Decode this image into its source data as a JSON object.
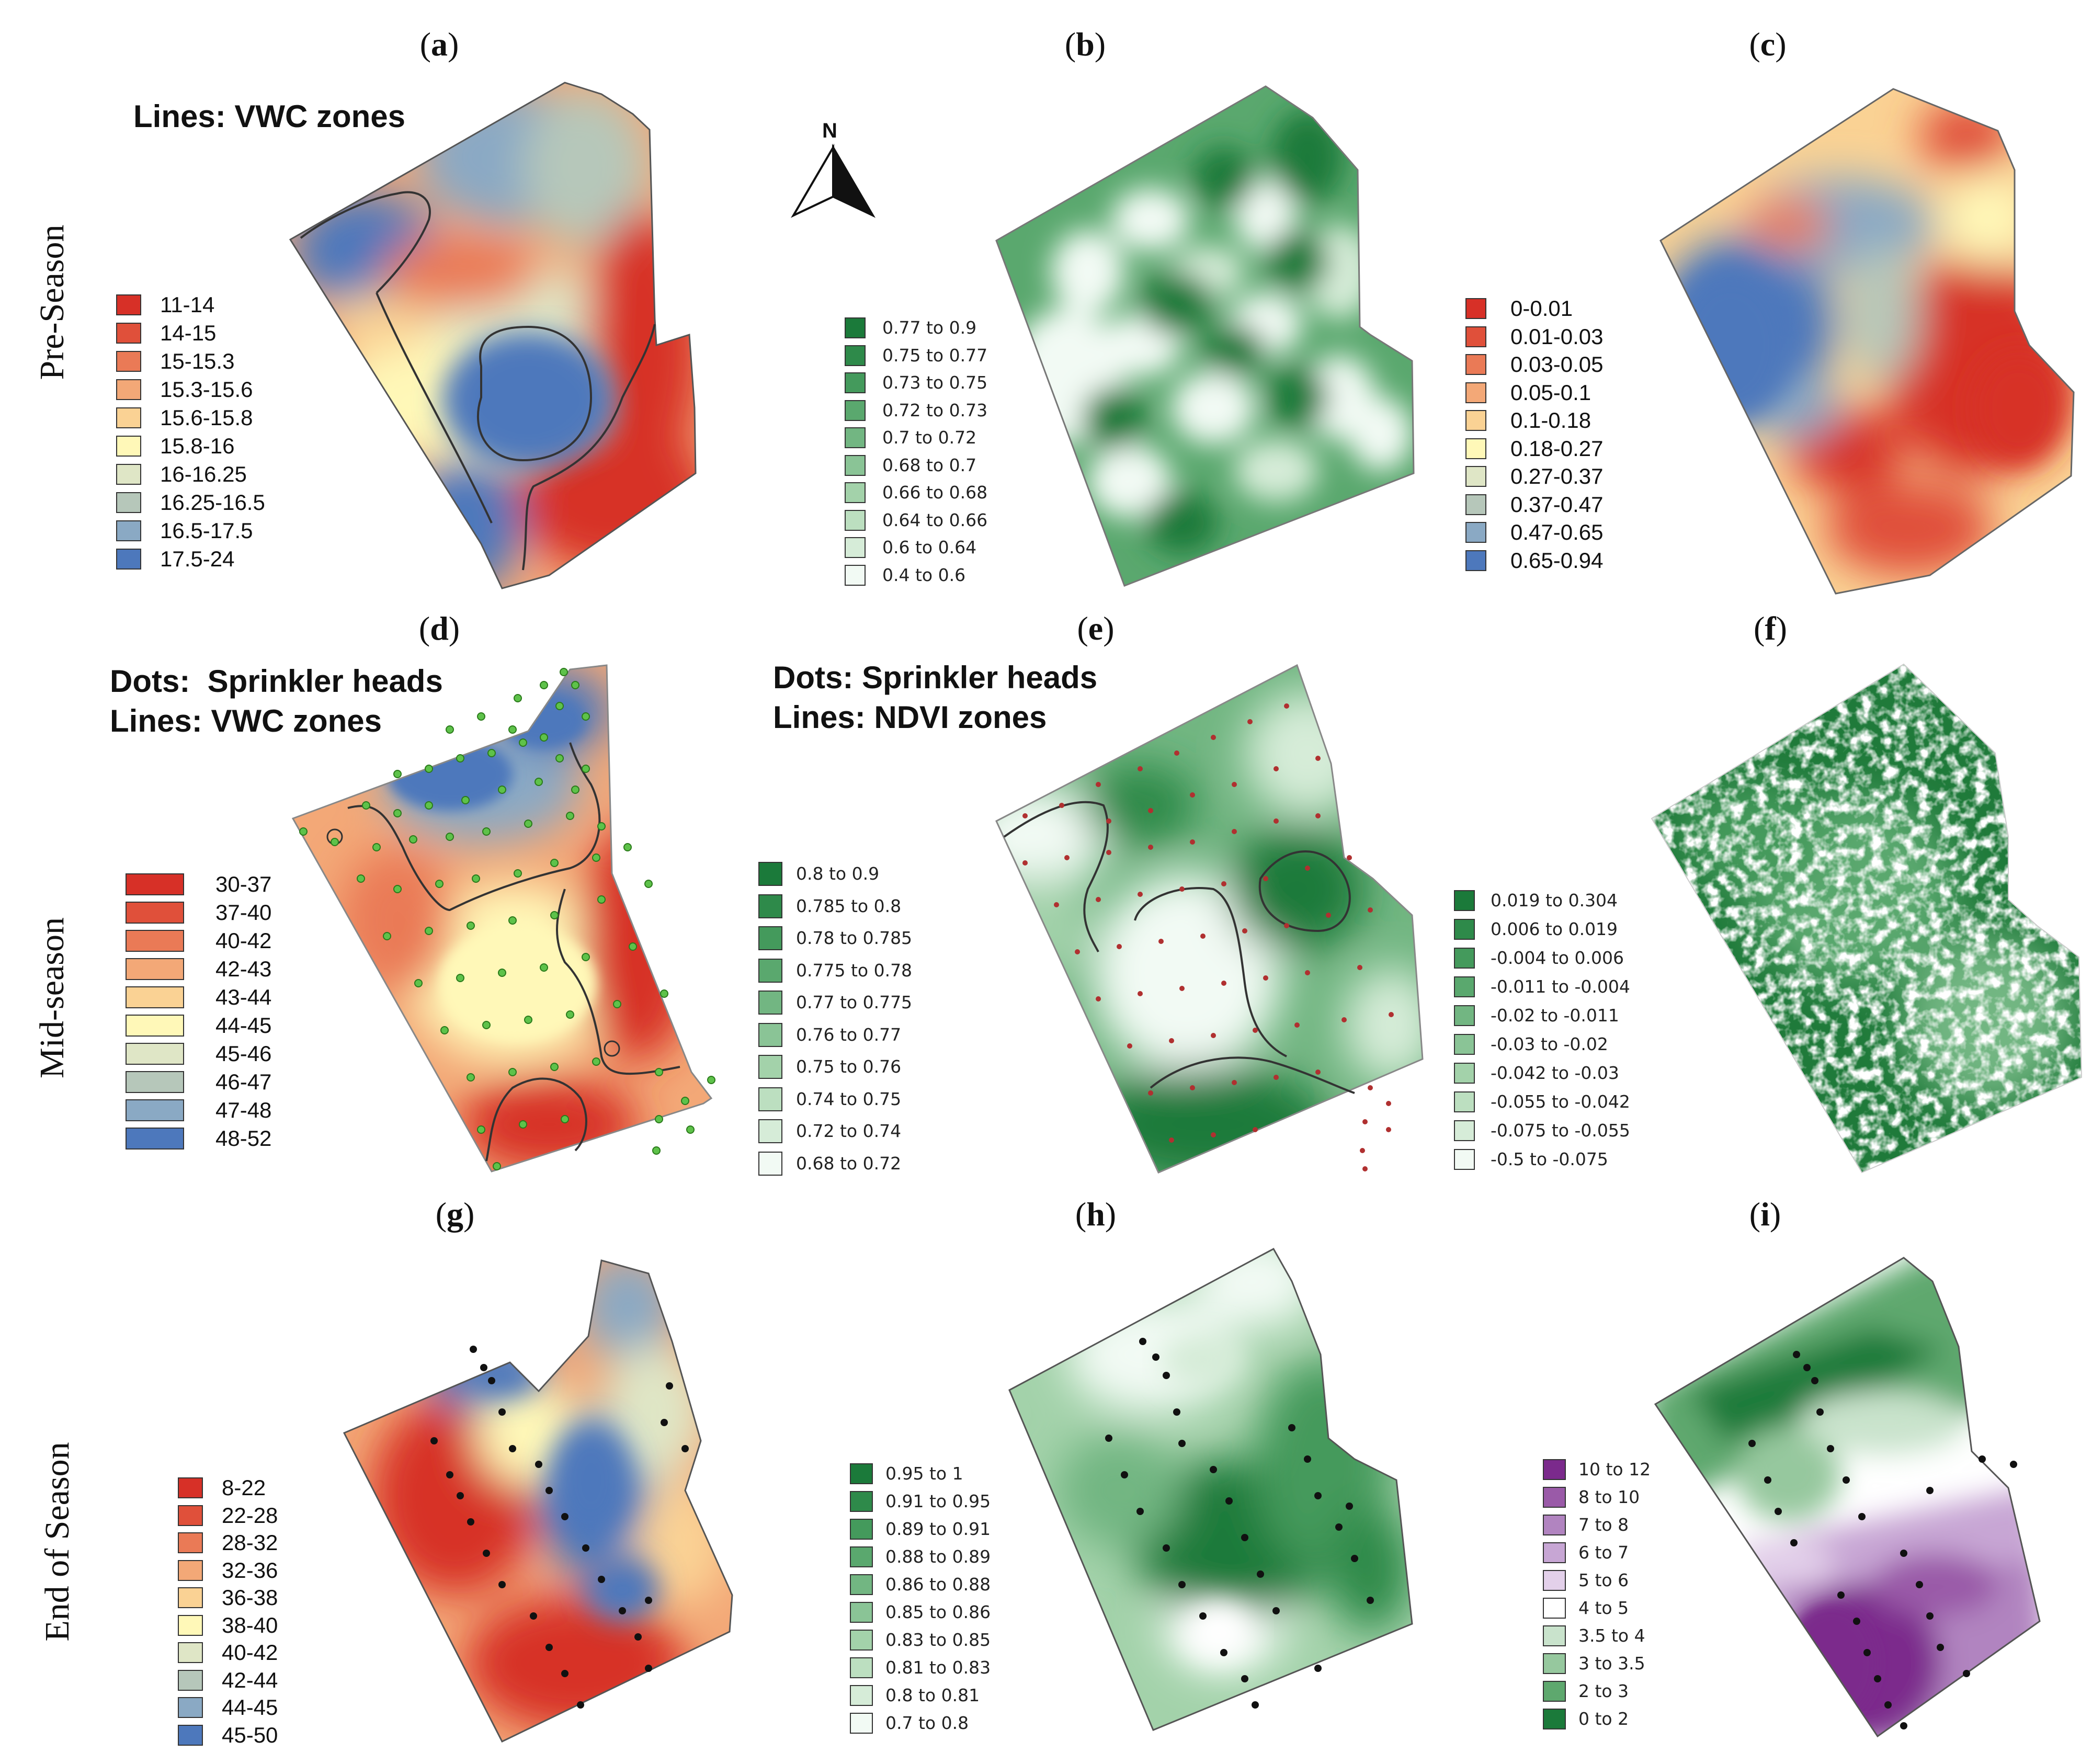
{
  "panels": {
    "a": "a",
    "b": "b",
    "c": "c",
    "d": "d",
    "e": "e",
    "f": "f",
    "g": "g",
    "h": "h",
    "i": "i"
  },
  "row_labels": {
    "pre_season": "Pre-Season",
    "mid_season": "Mid-season",
    "end_season": "End of Season"
  },
  "annotations": {
    "a_lines": "Lines: VWC zones",
    "d_dots": "Dots:  Sprinkler heads",
    "d_lines": "Lines: VWC zones",
    "e_dots": "Dots: Sprinkler heads",
    "e_lines": "Lines: NDVI zones"
  },
  "north_arrow": {
    "label": "N"
  },
  "legends": {
    "a": {
      "labels": [
        "11-14",
        "14-15",
        "15-15.3",
        "15.3-15.6",
        "15.6-15.8",
        "15.8-16",
        "16-16.25",
        "16.25-16.5",
        "16.5-17.5",
        "17.5-24"
      ],
      "colors": [
        "#d73027",
        "#e0503a",
        "#ea7a56",
        "#f3a877",
        "#fad294",
        "#fff8b8",
        "#dfe6c6",
        "#b6c7ba",
        "#8aa9c4",
        "#4d78bc"
      ]
    },
    "b": {
      "labels": [
        "0.77 to 0.9",
        "0.75 to 0.77",
        "0.73 to 0.75",
        "0.72 to 0.73",
        "0.7 to 0.72",
        "0.68 to 0.7",
        "0.66 to 0.68",
        "0.64 to 0.66",
        "0.6 to 0.64",
        "0.4 to 0.6"
      ],
      "colors": [
        "#1b7a3a",
        "#2e8a4a",
        "#449a5c",
        "#5aa86e",
        "#72b682",
        "#8ac496",
        "#a3d2aa",
        "#bcdfc0",
        "#d6ecd8",
        "#f2faf4"
      ]
    },
    "c": {
      "labels": [
        "0-0.01",
        "0.01-0.03",
        "0.03-0.05",
        "0.05-0.1",
        "0.1-0.18",
        "0.18-0.27",
        "0.27-0.37",
        "0.37-0.47",
        "0.47-0.65",
        "0.65-0.94"
      ],
      "colors": [
        "#d73027",
        "#e0503a",
        "#ea7a56",
        "#f3a877",
        "#fad294",
        "#fff8b8",
        "#dfe6c6",
        "#b6c7ba",
        "#8aa9c4",
        "#4d78bc"
      ]
    },
    "d": {
      "labels": [
        "30-37",
        "37-40",
        "40-42",
        "42-43",
        "43-44",
        "44-45",
        "45-46",
        "46-47",
        "47-48",
        "48-52"
      ],
      "colors": [
        "#d73027",
        "#e0503a",
        "#ea7a56",
        "#f3a877",
        "#fad294",
        "#fff8b8",
        "#dfe6c6",
        "#b6c7ba",
        "#8aa9c4",
        "#4d78bc"
      ]
    },
    "e": {
      "labels": [
        "0.8 to 0.9",
        "0.785 to 0.8",
        "0.78 to 0.785",
        "0.775 to 0.78",
        "0.77 to 0.775",
        "0.76 to 0.77",
        "0.75 to 0.76",
        "0.74 to 0.75",
        "0.72 to 0.74",
        "0.68 to 0.72"
      ],
      "colors": [
        "#1b7a3a",
        "#2e8a4a",
        "#449a5c",
        "#5aa86e",
        "#72b682",
        "#8ac496",
        "#a3d2aa",
        "#bcdfc0",
        "#d6ecd8",
        "#f2faf4"
      ]
    },
    "f": {
      "labels": [
        "0.019 to 0.304",
        "0.006 to 0.019",
        "-0.004 to 0.006",
        "-0.011 to -0.004",
        "-0.02 to -0.011",
        "-0.03 to -0.02",
        "-0.042 to -0.03",
        "-0.055 to -0.042",
        "-0.075 to -0.055",
        "-0.5 to -0.075"
      ],
      "colors": [
        "#1b7a3a",
        "#2e8a4a",
        "#449a5c",
        "#5aa86e",
        "#72b682",
        "#8ac496",
        "#a3d2aa",
        "#bcdfc0",
        "#d6ecd8",
        "#f2faf4"
      ]
    },
    "g": {
      "labels": [
        "8-22",
        "22-28",
        "28-32",
        "32-36",
        "36-38",
        "38-40",
        "40-42",
        "42-44",
        "44-45",
        "45-50"
      ],
      "colors": [
        "#d73027",
        "#e0503a",
        "#ea7a56",
        "#f3a877",
        "#fad294",
        "#fff8b8",
        "#dfe6c6",
        "#b6c7ba",
        "#8aa9c4",
        "#4d78bc"
      ]
    },
    "h": {
      "labels": [
        "0.95 to 1",
        "0.91 to 0.95",
        "0.89 to 0.91",
        "0.88 to 0.89",
        "0.86 to 0.88",
        "0.85 to 0.86",
        "0.83 to 0.85",
        "0.81 to 0.83",
        "0.8 to 0.81",
        "0.7 to 0.8"
      ],
      "colors": [
        "#1b7a3a",
        "#2e8a4a",
        "#449a5c",
        "#5aa86e",
        "#72b682",
        "#8ac496",
        "#a3d2aa",
        "#bcdfc0",
        "#d6ecd8",
        "#f2faf4"
      ]
    },
    "i": {
      "labels": [
        "10 to 12",
        "8 to 10",
        "7 to 8",
        "6 to 7",
        "5 to 6",
        "4 to 5",
        "3.5 to 4",
        "3 to 3.5",
        "2 to 3",
        "0 to 2"
      ],
      "colors": [
        "#7b2a8c",
        "#9a5aa8",
        "#b184c0",
        "#c7a6d4",
        "#e3d0ea",
        "#ffffff",
        "#c9e3cc",
        "#96c89e",
        "#5ea86e",
        "#1b7a3a"
      ]
    }
  }
}
